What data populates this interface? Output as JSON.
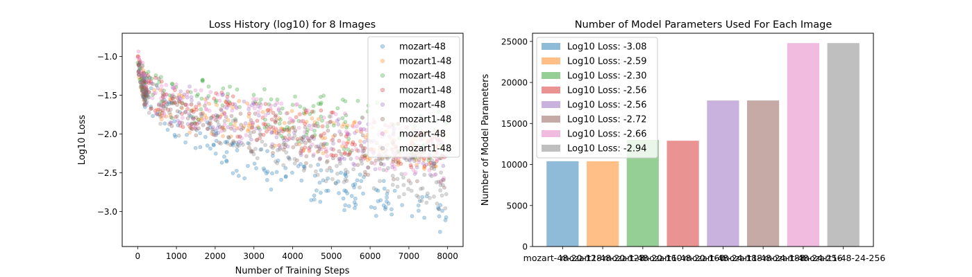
{
  "chart_data": [
    {
      "type": "scatter",
      "title": "Loss History (log10) for 8 Images",
      "xlabel": "Number of Training Steps",
      "ylabel": "Log10 Loss",
      "xlim": [
        -400,
        8400
      ],
      "ylim": [
        -3.45,
        -0.7
      ],
      "xticks": [
        0,
        1000,
        2000,
        3000,
        4000,
        5000,
        6000,
        7000,
        8000
      ],
      "yticks": [
        -3.0,
        -2.5,
        -2.0,
        -1.5,
        -1.0
      ],
      "xtick_labels": [
        "0",
        "1000",
        "2000",
        "3000",
        "4000",
        "5000",
        "6000",
        "7000",
        "8000"
      ],
      "ytick_labels": [
        "−3.0",
        "−2.5",
        "−2.0",
        "−1.5",
        "−1.0"
      ],
      "legend_position": "top-right",
      "grid": false,
      "series": [
        {
          "name": "mozart-48",
          "color": "#1f77b4",
          "band_x": [
            0,
            200,
            1000,
            2000,
            2200,
            4000,
            6000,
            8000
          ],
          "band_low": [
            -1.25,
            -1.75,
            -2.1,
            -2.3,
            -2.45,
            -2.85,
            -3.05,
            -3.3
          ],
          "band_high": [
            -1.0,
            -1.35,
            -1.65,
            -1.85,
            -2.0,
            -2.3,
            -2.55,
            -2.85
          ]
        },
        {
          "name": "mozart1-48",
          "color": "#ff7f0e",
          "band_x": [
            0,
            200,
            1000,
            2000,
            4000,
            6000,
            8000
          ],
          "band_low": [
            -1.2,
            -1.7,
            -1.95,
            -2.05,
            -2.2,
            -2.35,
            -2.5
          ],
          "band_high": [
            -0.95,
            -1.25,
            -1.4,
            -1.5,
            -1.7,
            -1.85,
            -2.0
          ]
        },
        {
          "name": "mozart-48",
          "color": "#2ca02c",
          "band_x": [
            0,
            200,
            1000,
            2000,
            4000,
            6000,
            8000
          ],
          "band_low": [
            -1.2,
            -1.6,
            -1.85,
            -1.95,
            -2.1,
            -2.3,
            -2.45
          ],
          "band_high": [
            -0.95,
            -1.15,
            -1.25,
            -1.3,
            -1.4,
            -1.55,
            -1.7
          ]
        },
        {
          "name": "mozart1-48",
          "color": "#d62728",
          "band_x": [
            0,
            200,
            1000,
            2000,
            4000,
            6000,
            8000
          ],
          "band_low": [
            -1.2,
            -1.65,
            -1.9,
            -2.0,
            -2.2,
            -2.35,
            -2.5
          ],
          "band_high": [
            -0.95,
            -1.2,
            -1.35,
            -1.45,
            -1.6,
            -1.8,
            -1.95
          ]
        },
        {
          "name": "mozart-48",
          "color": "#9467bd",
          "band_x": [
            0,
            200,
            1000,
            2000,
            4000,
            6000,
            8000
          ],
          "band_low": [
            -1.15,
            -1.65,
            -1.9,
            -2.05,
            -2.25,
            -2.45,
            -2.6
          ],
          "band_high": [
            -0.9,
            -1.2,
            -1.35,
            -1.45,
            -1.65,
            -1.85,
            -2.05
          ]
        },
        {
          "name": "mozart1-48",
          "color": "#8c564b",
          "band_x": [
            0,
            200,
            1000,
            2000,
            4000,
            6000,
            8000
          ],
          "band_low": [
            -1.2,
            -1.7,
            -2.0,
            -2.15,
            -2.35,
            -2.55,
            -2.75
          ],
          "band_high": [
            -0.95,
            -1.3,
            -1.5,
            -1.6,
            -1.8,
            -2.0,
            -2.2
          ]
        },
        {
          "name": "mozart-48",
          "color": "#e377c2",
          "band_x": [
            0,
            200,
            1000,
            2000,
            4000,
            6000,
            8000
          ],
          "band_low": [
            -1.15,
            -1.65,
            -1.9,
            -2.0,
            -2.2,
            -2.45,
            -2.65
          ],
          "band_high": [
            -0.85,
            -1.2,
            -1.35,
            -1.45,
            -1.6,
            -1.8,
            -2.0
          ]
        },
        {
          "name": "mozart1-48",
          "color": "#7f7f7f",
          "band_x": [
            0,
            200,
            1000,
            2000,
            4000,
            6000,
            8000
          ],
          "band_low": [
            -1.25,
            -1.8,
            -2.05,
            -2.2,
            -2.5,
            -2.75,
            -3.0
          ],
          "band_high": [
            -1.0,
            -1.4,
            -1.6,
            -1.75,
            -2.0,
            -2.2,
            -2.35
          ]
        }
      ]
    },
    {
      "type": "bar",
      "title": "Number of Model Parameters Used For Each Image",
      "xlabel": "",
      "ylabel": "Number of Model Parameters",
      "ylim": [
        0,
        26000
      ],
      "yticks": [
        0,
        5000,
        10000,
        15000,
        20000,
        25000
      ],
      "ytick_labels": [
        "0",
        "5000",
        "10000",
        "15000",
        "20000",
        "25000"
      ],
      "categories": [
        "mozart-48-20-128",
        "mozart1-48-20-128",
        "mozart-48-20-160",
        "mozart1-48-20-160",
        "mozart-48-24-188",
        "mozart1-48-24-188",
        "mozart-48-24-256",
        "mozart1-48-24-256"
      ],
      "category_labels": [
        "mozart-48-20-128",
        "mozart1-48-20-128",
        "mozart-48-20-160",
        "mozart1-48-20-160",
        "mozart-48-24-188",
        "mozart1-48-24-188",
        "mozart-48-24-256",
        "mozart1-48-24-256"
      ],
      "values": [
        10400,
        10400,
        13000,
        12900,
        17800,
        17800,
        24800,
        24800
      ],
      "colors": [
        "#1f77b4",
        "#ff7f0e",
        "#2ca02c",
        "#d62728",
        "#9467bd",
        "#8c564b",
        "#e377c2",
        "#7f7f7f"
      ],
      "legend_position": "top-left",
      "legend": [
        "Log10 Loss: -3.08",
        "Log10 Loss: -2.59",
        "Log10 Loss: -2.30",
        "Log10 Loss: -2.56",
        "Log10 Loss: -2.56",
        "Log10 Loss: -2.72",
        "Log10 Loss: -2.66",
        "Log10 Loss: -2.94"
      ],
      "grid": false
    }
  ]
}
